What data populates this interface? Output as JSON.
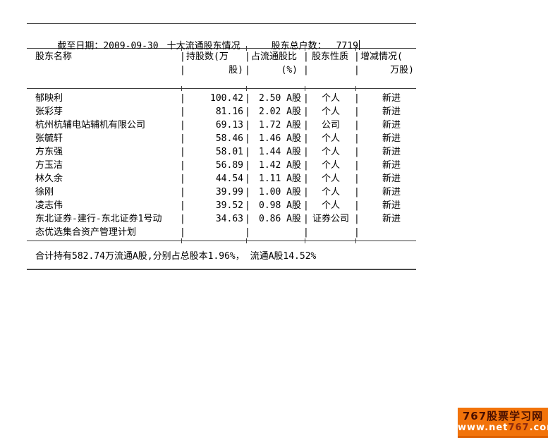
{
  "header": {
    "date_label": "截至日期：",
    "date_value": "2009-09-30",
    "title": "十大流通股东情况",
    "holders_label": "股东总户数：",
    "holders_value": "7719"
  },
  "columns": {
    "name": "股东名称",
    "shares_l1": "持股数(万",
    "shares_l2": "股)",
    "ratio_l1": "占流通股比",
    "ratio_l2": "(%)",
    "nature": "股东性质",
    "change_l1": "增减情况(",
    "change_l2": "万股)"
  },
  "rows": [
    {
      "name": "郁映利",
      "shares": "100.42",
      "ratio": "2.50 A股",
      "nature": "个人",
      "change": "新进"
    },
    {
      "name": "张彩芽",
      "shares": "81.16",
      "ratio": "2.02 A股",
      "nature": "个人",
      "change": "新进"
    },
    {
      "name": "杭州杭辅电站辅机有限公司",
      "shares": "69.13",
      "ratio": "1.72 A股",
      "nature": "公司",
      "change": "新进"
    },
    {
      "name": "张毓轩",
      "shares": "58.46",
      "ratio": "1.46 A股",
      "nature": "个人",
      "change": "新进"
    },
    {
      "name": "方东强",
      "shares": "58.01",
      "ratio": "1.44 A股",
      "nature": "个人",
      "change": "新进"
    },
    {
      "name": "方玉洁",
      "shares": "56.89",
      "ratio": "1.42 A股",
      "nature": "个人",
      "change": "新进"
    },
    {
      "name": "林久余",
      "shares": "44.54",
      "ratio": "1.11 A股",
      "nature": "个人",
      "change": "新进"
    },
    {
      "name": "徐刚",
      "shares": "39.99",
      "ratio": "1.00 A股",
      "nature": "个人",
      "change": "新进"
    },
    {
      "name": "凌志伟",
      "shares": "39.52",
      "ratio": "0.98 A股",
      "nature": "个人",
      "change": "新进"
    },
    {
      "name": "东北证券-建行-东北证券1号动",
      "shares": "34.63",
      "ratio": "0.86 A股",
      "nature": "证券公司",
      "change": "新进"
    },
    {
      "name": "态优选集合资产管理计划",
      "shares": "",
      "ratio": "",
      "nature": "",
      "change": ""
    }
  ],
  "footer": {
    "summary": "合计持有582.74万流通A股,分别占总股本1.96%， 流通A股14.52%"
  },
  "watermark": {
    "site_name": "767股票学习网",
    "url_prefix": "www.net",
    "url_mid": "767",
    "url_suffix": ".com"
  },
  "colors": {
    "accent_orange": "#f2730a",
    "line": "#3c3c3c",
    "text": "#000000",
    "url_mid_red": "#8d2a0e"
  }
}
